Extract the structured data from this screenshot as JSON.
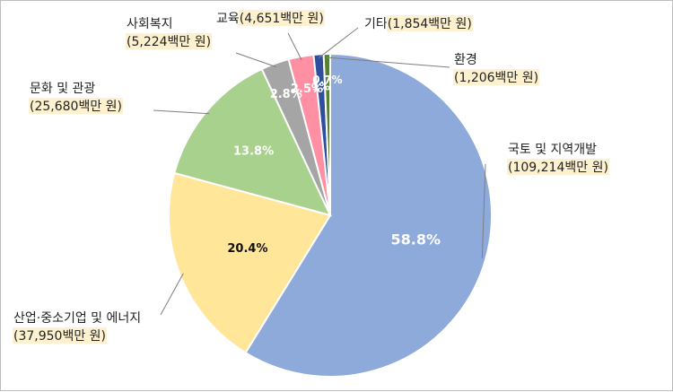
{
  "chart_data": {
    "type": "pie",
    "unit": "백만 원",
    "slices": [
      {
        "name": "국토 및 지역개발",
        "value": 109214,
        "percent_label": "58.8%",
        "amount_label": "(109,214백만 원)",
        "color": "#8eaadb",
        "pct_color": "#ffffff",
        "amount_color": "#e00000"
      },
      {
        "name": "산업·중소기업 및 에너지",
        "value": 37950,
        "percent_label": "20.4%",
        "amount_label": "(37,950백만 원)",
        "color": "#ffe699",
        "pct_color": "#111111",
        "amount_color": "#222222"
      },
      {
        "name": "문화 및 관광",
        "value": 25680,
        "percent_label": "13.8%",
        "amount_label": "(25,680백만 원)",
        "color": "#a9d18e",
        "pct_color": "#ffffff",
        "amount_color": "#222222"
      },
      {
        "name": "사회복지",
        "value": 5224,
        "percent_label": "2.8%",
        "amount_label": "(5,224백만 원)",
        "color": "#a5a5a5",
        "pct_color": "#ffffff",
        "amount_color": "#222222"
      },
      {
        "name": "교육",
        "value": 4651,
        "percent_label": "2.5%",
        "amount_label": "(4,651백만 원)",
        "color": "#ff8fa3",
        "pct_color": "#ffffff",
        "amount_color": "#222222"
      },
      {
        "name": "기타",
        "value": 1854,
        "percent_label": "1%",
        "amount_label": "(1,854백만 원)",
        "color": "#2f4f9e",
        "pct_color": "#ffffff",
        "amount_color": "#222222"
      },
      {
        "name": "환경",
        "value": 1206,
        "percent_label": "0.7%",
        "amount_label": "(1,206백만 원)",
        "color": "#548235",
        "pct_color": "#ffffff",
        "amount_color": "#222222"
      }
    ]
  }
}
